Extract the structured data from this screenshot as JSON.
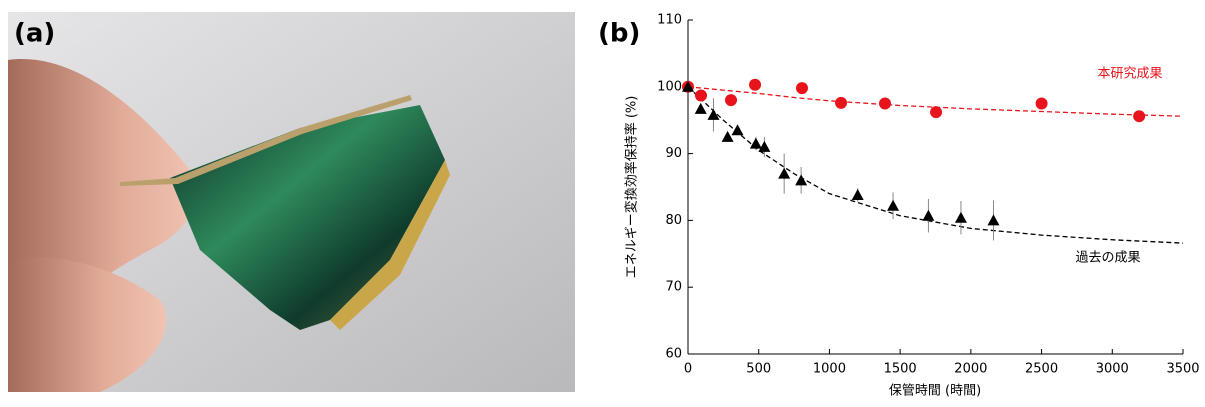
{
  "figure": {
    "panel_labels": [
      "(a)",
      "(b)"
    ]
  },
  "chart_data": {
    "type": "scatter",
    "xlabel": "保管時間 (時間)",
    "ylabel": "エネルギー変換効率保持率 (%)",
    "xlim": [
      0,
      3500
    ],
    "xticks": [
      0,
      500,
      1000,
      1500,
      2000,
      2500,
      3000,
      3500
    ],
    "ylim": [
      60,
      110
    ],
    "yticks": [
      60,
      70,
      80,
      90,
      100,
      110
    ],
    "series": [
      {
        "name": "本研究成果",
        "color": "#e8141c",
        "marker": "circle",
        "x": [
          0,
          92,
          304,
          474,
          806,
          1082,
          1393,
          1754,
          2500,
          3190
        ],
        "values": [
          100,
          98.7,
          98,
          100.3,
          99.8,
          97.6,
          97.5,
          96.2,
          97.5,
          95.6
        ]
      },
      {
        "name": "過去の成果",
        "color": "#000000",
        "marker": "triangle",
        "x": [
          0,
          90,
          180,
          280,
          350,
          480,
          540,
          680,
          800,
          1200,
          1450,
          1700,
          1930,
          2160
        ],
        "values": [
          100,
          96.7,
          95.8,
          92.5,
          93.5,
          91.5,
          91,
          87,
          86,
          83.8,
          82.2,
          80.7,
          80.4,
          80
        ],
        "errors": [
          null,
          null,
          2.5,
          null,
          null,
          1,
          1.5,
          3,
          2,
          1,
          2,
          2.5,
          2.5,
          3
        ]
      }
    ],
    "fit_lines": [
      {
        "color": "#e8141c",
        "x": [
          0,
          250,
          500,
          750,
          1000,
          1500,
          2000,
          2500,
          3000,
          3500
        ],
        "values": [
          100,
          99.5,
          99,
          98.4,
          97.9,
          97.2,
          96.7,
          96.3,
          95.9,
          95.6
        ]
      },
      {
        "color": "#000000",
        "x": [
          0,
          250,
          500,
          750,
          1000,
          1500,
          2000,
          2500,
          3000,
          3500
        ],
        "values": [
          100,
          95,
          90.5,
          87,
          84,
          80.7,
          78.8,
          77.8,
          77.1,
          76.6
        ]
      }
    ]
  }
}
